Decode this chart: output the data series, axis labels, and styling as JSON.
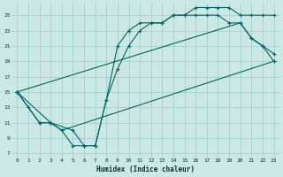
{
  "xlabel": "Humidex (Indice chaleur)",
  "bg_color": "#cce8e4",
  "line_color": "#006666",
  "grid_color": "#99cccc",
  "xlim": [
    -0.5,
    23.5
  ],
  "ylim": [
    6.5,
    26.5
  ],
  "xticks": [
    0,
    1,
    2,
    3,
    4,
    5,
    6,
    7,
    8,
    9,
    10,
    11,
    12,
    13,
    14,
    15,
    16,
    17,
    18,
    19,
    20,
    21,
    22,
    23
  ],
  "yticks": [
    7,
    9,
    11,
    13,
    15,
    17,
    19,
    21,
    23,
    25
  ],
  "line1_x": [
    0,
    1,
    2,
    3,
    4,
    5,
    6,
    7,
    8,
    9,
    10,
    11,
    12,
    13,
    14,
    15,
    16,
    17,
    18,
    19,
    20,
    21,
    22,
    23
  ],
  "line1_y": [
    15,
    13,
    11,
    11,
    10,
    8,
    8,
    8,
    14,
    21,
    23,
    24,
    24,
    24,
    25,
    25,
    26,
    26,
    26,
    26,
    25,
    25,
    25,
    25
  ],
  "line2_x": [
    0,
    2,
    3,
    5,
    6,
    7,
    8,
    9,
    10,
    11,
    12,
    13,
    14,
    15,
    16,
    17,
    18,
    19,
    20,
    21,
    22,
    23
  ],
  "line2_y": [
    15,
    11,
    11,
    10,
    8,
    8,
    14,
    18,
    21,
    23,
    24,
    24,
    25,
    25,
    25,
    25,
    25,
    24,
    24,
    22,
    21,
    20
  ],
  "line3_x": [
    0,
    3,
    4,
    23
  ],
  "line3_y": [
    15,
    11,
    10,
    19
  ],
  "line4_x": [
    0,
    20,
    21,
    22,
    23
  ],
  "line4_y": [
    15,
    24,
    22,
    21,
    19
  ]
}
